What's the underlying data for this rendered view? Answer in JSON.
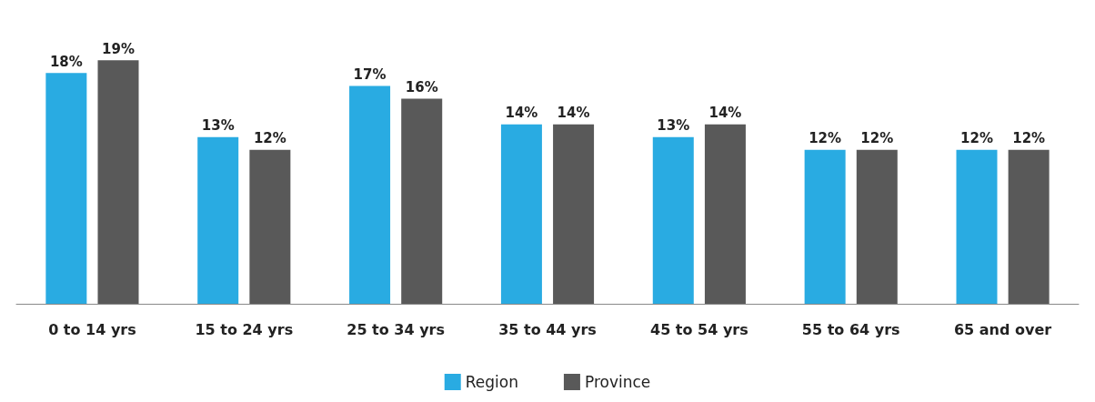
{
  "chart_data": {
    "type": "bar",
    "categories": [
      "0 to 14 yrs",
      "15 to 24 yrs",
      "25 to 34 yrs",
      "35 to 44 yrs",
      "45 to 54 yrs",
      "55 to 64 yrs",
      "65 and over"
    ],
    "series": [
      {
        "name": "Region",
        "color": "#29abe2",
        "values": [
          18,
          13,
          17,
          14,
          13,
          12,
          12
        ],
        "value_labels": [
          "18%",
          "13%",
          "17%",
          "14%",
          "13%",
          "12%",
          "12%"
        ]
      },
      {
        "name": "Province",
        "color": "#595959",
        "values": [
          19,
          12,
          16,
          14,
          14,
          12,
          12
        ],
        "value_labels": [
          "19%",
          "12%",
          "16%",
          "14%",
          "14%",
          "12%",
          "12%"
        ]
      }
    ],
    "legend": "bottom"
  }
}
